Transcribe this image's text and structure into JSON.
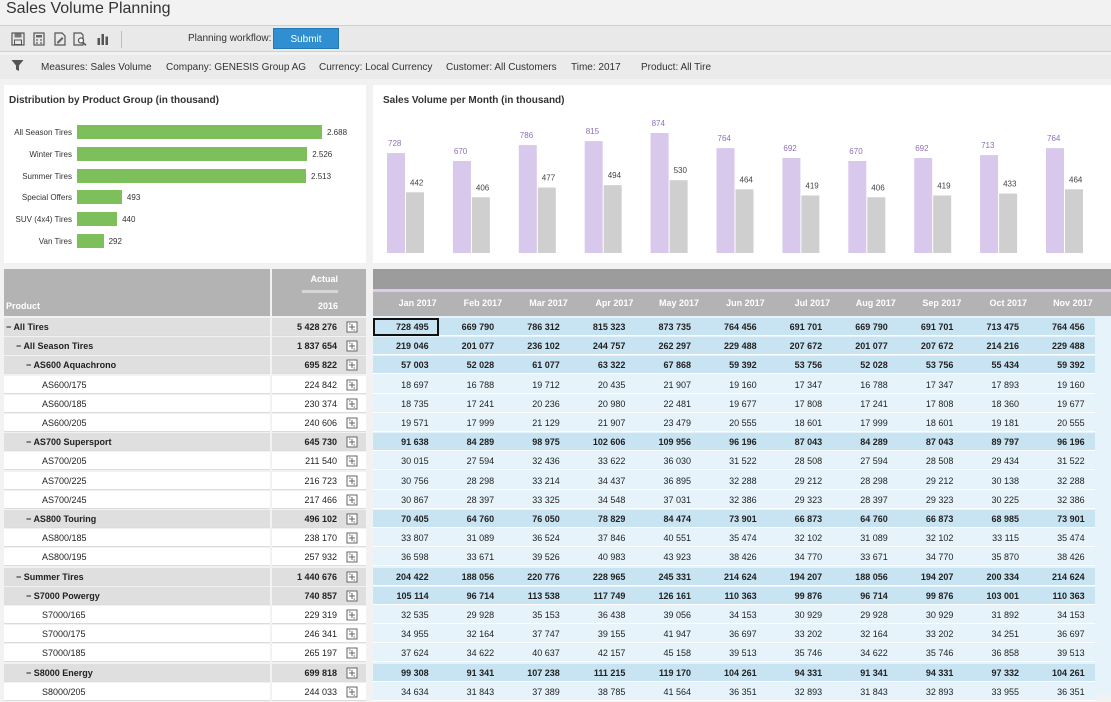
{
  "app": {
    "title": "Sales Volume Planning"
  },
  "toolbar": {
    "icons": [
      "save-icon",
      "calculator-icon",
      "document-edit-icon",
      "document-search-icon",
      "bar-chart-icon"
    ],
    "workflow_label": "Planning workflow:",
    "submit_label": "Submit"
  },
  "filters": [
    "Measures: Sales Volume",
    "Company: GENESIS Group AG",
    "Currency: Local Currency",
    "Customer: All Customers",
    "Time: 2017",
    "Product: All Tire"
  ],
  "distribution_chart": {
    "title": "Distribution by Product Group (in thousand)",
    "chart_data": {
      "type": "bar",
      "orientation": "horizontal",
      "categories": [
        "All Season Tires",
        "Winter Tires",
        "Summer Tires",
        "Special Offers",
        "SUV (4x4) Tires",
        "Van Tires"
      ],
      "values": [
        2688,
        2526,
        2513,
        493,
        440,
        292
      ],
      "value_labels": [
        "2.688",
        "2.526",
        "2.513",
        "493",
        "440",
        "292"
      ],
      "color": "#7dbf5a"
    }
  },
  "monthly_chart": {
    "title": "Sales Volume per Month (in thousand)",
    "chart_data": {
      "type": "bar",
      "categories": [
        "Jan",
        "Feb",
        "Mar",
        "Apr",
        "May",
        "Jun",
        "Jul",
        "Aug",
        "Sep",
        "Oct",
        "Nov"
      ],
      "series": [
        {
          "values": [
            728,
            670,
            786,
            815,
            874,
            764,
            692,
            670,
            692,
            713,
            764
          ],
          "color": "#d8c8ec",
          "label_color": "#8e6fb8"
        },
        {
          "values": [
            442,
            406,
            477,
            494,
            530,
            464,
            419,
            406,
            419,
            433,
            464
          ],
          "color": "#cfcfcf",
          "label_color": "#444444"
        }
      ]
    }
  },
  "grid": {
    "product_header": "Product",
    "actual_header": "Actual",
    "actual_year": "2016",
    "months": [
      "Jan 2017",
      "Feb 2017",
      "Mar 2017",
      "Apr 2017",
      "May 2017",
      "Jun 2017",
      "Jul 2017",
      "Aug 2017",
      "Sep 2017",
      "Oct 2017",
      "Nov 2017"
    ],
    "rows": [
      {
        "label": "All Tires",
        "level": 0,
        "group": true,
        "actual": "5 428 276",
        "values": [
          "728 495",
          "669 790",
          "786 312",
          "815 323",
          "873 735",
          "764 456",
          "691 701",
          "669 790",
          "691 701",
          "713 475",
          "764 456"
        ]
      },
      {
        "label": "All Season Tires",
        "level": 1,
        "group": true,
        "actual": "1 837 654",
        "values": [
          "219 046",
          "201 077",
          "236 102",
          "244 757",
          "262 297",
          "229 488",
          "207 672",
          "201 077",
          "207 672",
          "214 216",
          "229 488"
        ]
      },
      {
        "label": "AS600 Aquachrono",
        "level": 2,
        "group": true,
        "actual": "695 822",
        "values": [
          "57 003",
          "52 028",
          "61 077",
          "63 322",
          "67 868",
          "59 392",
          "53 756",
          "52 028",
          "53 756",
          "55 434",
          "59 392"
        ]
      },
      {
        "label": "AS600/175",
        "level": 3,
        "group": false,
        "actual": "224 842",
        "values": [
          "18 697",
          "16 788",
          "19 712",
          "20 435",
          "21 907",
          "19 160",
          "17 347",
          "16 788",
          "17 347",
          "17 893",
          "19 160"
        ]
      },
      {
        "label": "AS600/185",
        "level": 3,
        "group": false,
        "actual": "230 374",
        "values": [
          "18 735",
          "17 241",
          "20 236",
          "20 980",
          "22 481",
          "19 677",
          "17 808",
          "17 241",
          "17 808",
          "18 360",
          "19 677"
        ]
      },
      {
        "label": "AS600/205",
        "level": 3,
        "group": false,
        "actual": "240 606",
        "values": [
          "19 571",
          "17 999",
          "21 129",
          "21 907",
          "23 479",
          "20 555",
          "18 601",
          "17 999",
          "18 601",
          "19 181",
          "20 555"
        ]
      },
      {
        "label": "AS700 Supersport",
        "level": 2,
        "group": true,
        "actual": "645 730",
        "values": [
          "91 638",
          "84 289",
          "98 975",
          "102 606",
          "109 956",
          "96 196",
          "87 043",
          "84 289",
          "87 043",
          "89 797",
          "96 196"
        ]
      },
      {
        "label": "AS700/205",
        "level": 3,
        "group": false,
        "actual": "211 540",
        "values": [
          "30 015",
          "27 594",
          "32 436",
          "33 622",
          "36 030",
          "31 522",
          "28 508",
          "27 594",
          "28 508",
          "29 434",
          "31 522"
        ]
      },
      {
        "label": "AS700/225",
        "level": 3,
        "group": false,
        "actual": "216 723",
        "values": [
          "30 756",
          "28 298",
          "33 214",
          "34 437",
          "36 895",
          "32 288",
          "29 212",
          "28 298",
          "29 212",
          "30 138",
          "32 288"
        ]
      },
      {
        "label": "AS700/245",
        "level": 3,
        "group": false,
        "actual": "217 466",
        "values": [
          "30 867",
          "28 397",
          "33 325",
          "34 548",
          "37 031",
          "32 386",
          "29 323",
          "28 397",
          "29 323",
          "30 225",
          "32 386"
        ]
      },
      {
        "label": "AS800 Touring",
        "level": 2,
        "group": true,
        "actual": "496 102",
        "values": [
          "70 405",
          "64 760",
          "76 050",
          "78 829",
          "84 474",
          "73 901",
          "66 873",
          "64 760",
          "66 873",
          "68 985",
          "73 901"
        ]
      },
      {
        "label": "AS800/185",
        "level": 3,
        "group": false,
        "actual": "238 170",
        "values": [
          "33 807",
          "31 089",
          "36 524",
          "37 846",
          "40 551",
          "35 474",
          "32 102",
          "31 089",
          "32 102",
          "33 115",
          "35 474"
        ]
      },
      {
        "label": "AS800/195",
        "level": 3,
        "group": false,
        "actual": "257 932",
        "values": [
          "36 598",
          "33 671",
          "39 526",
          "40 983",
          "43 923",
          "38 426",
          "34 770",
          "33 671",
          "34 770",
          "35 870",
          "38 426"
        ]
      },
      {
        "label": "Summer Tires",
        "level": 1,
        "group": true,
        "actual": "1 440 676",
        "values": [
          "204 422",
          "188 056",
          "220 776",
          "228 965",
          "245 331",
          "214 624",
          "194 207",
          "188 056",
          "194 207",
          "200 334",
          "214 624"
        ]
      },
      {
        "label": "S7000 Powergy",
        "level": 2,
        "group": true,
        "actual": "740 857",
        "values": [
          "105 114",
          "96 714",
          "113 538",
          "117 749",
          "126 161",
          "110 363",
          "99 876",
          "96 714",
          "99 876",
          "103 001",
          "110 363"
        ]
      },
      {
        "label": "S7000/165",
        "level": 3,
        "group": false,
        "actual": "229 319",
        "values": [
          "32 535",
          "29 928",
          "35 153",
          "36 438",
          "39 056",
          "34 153",
          "30 929",
          "29 928",
          "30 929",
          "31 892",
          "34 153"
        ]
      },
      {
        "label": "S7000/175",
        "level": 3,
        "group": false,
        "actual": "246 341",
        "values": [
          "34 955",
          "32 164",
          "37 747",
          "39 155",
          "41 947",
          "36 697",
          "33 202",
          "32 164",
          "33 202",
          "34 251",
          "36 697"
        ]
      },
      {
        "label": "S7000/185",
        "level": 3,
        "group": false,
        "actual": "265 197",
        "values": [
          "37 624",
          "34 622",
          "40 637",
          "42 157",
          "45 158",
          "39 513",
          "35 746",
          "34 622",
          "35 746",
          "36 858",
          "39 513"
        ]
      },
      {
        "label": "S8000 Energy",
        "level": 2,
        "group": true,
        "actual": "699 818",
        "values": [
          "99 308",
          "91 341",
          "107 238",
          "111 215",
          "119 170",
          "104 261",
          "94 331",
          "91 341",
          "94 331",
          "97 332",
          "104 261"
        ]
      },
      {
        "label": "S8000/205",
        "level": 3,
        "group": false,
        "actual": "244 033",
        "values": [
          "34 634",
          "31 843",
          "37 389",
          "38 785",
          "41 564",
          "36 351",
          "32 893",
          "31 843",
          "32 893",
          "33 955",
          "36 351"
        ]
      }
    ]
  }
}
